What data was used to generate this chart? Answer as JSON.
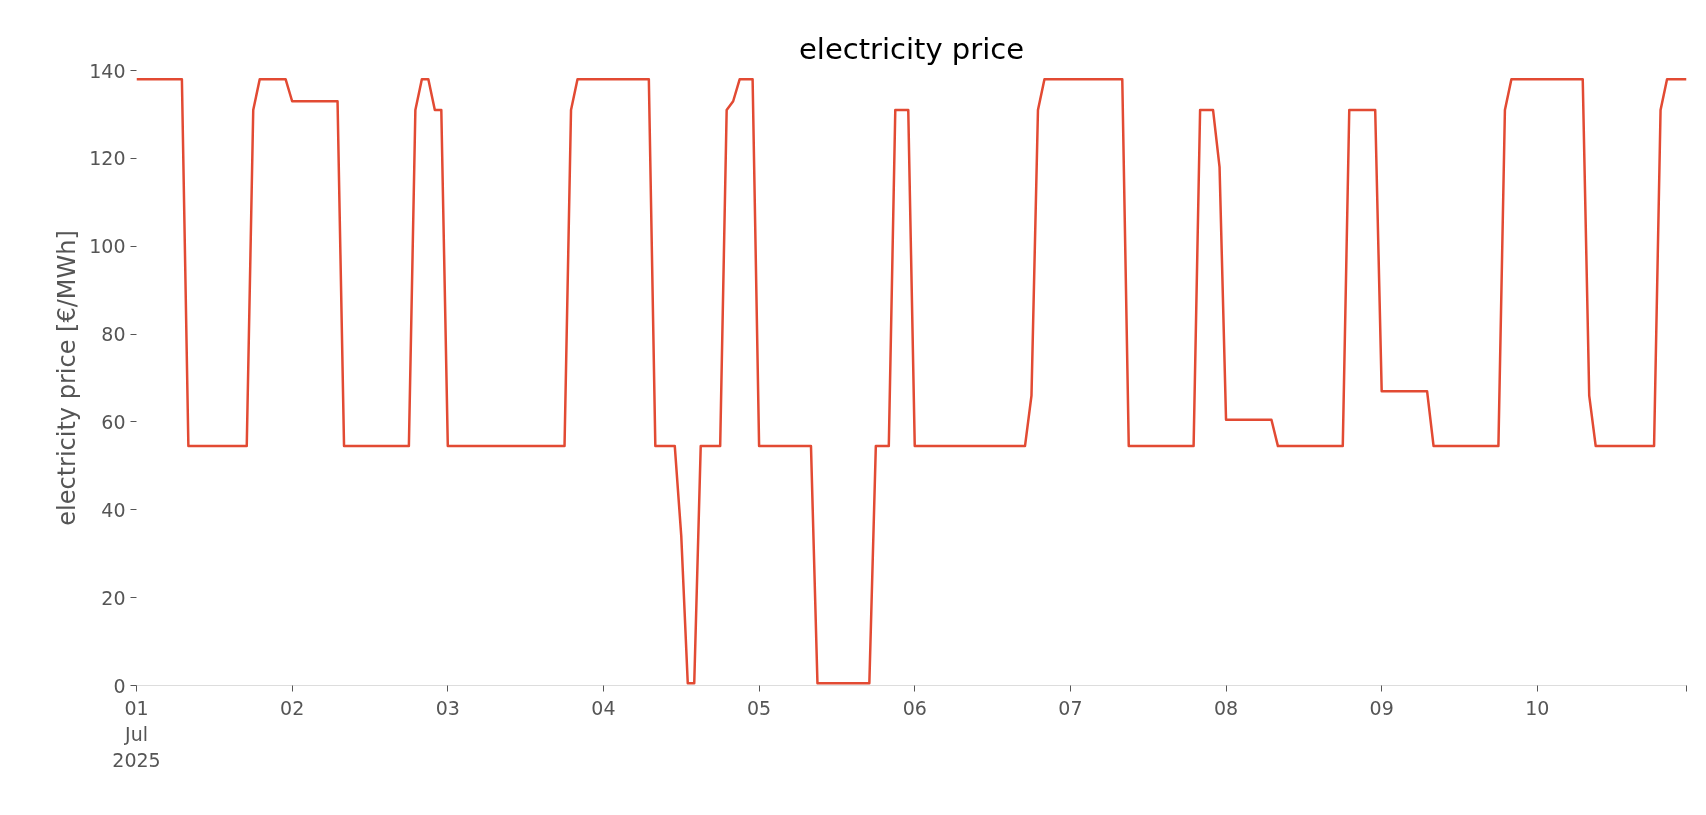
{
  "chart_data": {
    "type": "line",
    "title": "electricity price",
    "ylabel": "electricity price [€/MWh]",
    "x": [
      "2025-07-01T00:00",
      "2025-07-01T07:00",
      "2025-07-01T08:00",
      "2025-07-01T17:00",
      "2025-07-01T18:00",
      "2025-07-01T19:00",
      "2025-07-01T23:00",
      "2025-07-02T00:00",
      "2025-07-02T07:00",
      "2025-07-02T08:00",
      "2025-07-02T18:00",
      "2025-07-02T19:00",
      "2025-07-02T20:00",
      "2025-07-02T21:00",
      "2025-07-02T22:00",
      "2025-07-02T23:00",
      "2025-07-03T00:00",
      "2025-07-03T18:00",
      "2025-07-03T19:00",
      "2025-07-03T20:00",
      "2025-07-04T07:00",
      "2025-07-04T08:00",
      "2025-07-04T11:00",
      "2025-07-04T12:00",
      "2025-07-04T13:00",
      "2025-07-04T14:00",
      "2025-07-04T15:00",
      "2025-07-04T18:00",
      "2025-07-04T19:00",
      "2025-07-04T20:00",
      "2025-07-04T21:00",
      "2025-07-04T23:00",
      "2025-07-05T00:00",
      "2025-07-05T08:00",
      "2025-07-05T09:00",
      "2025-07-05T17:00",
      "2025-07-05T18:00",
      "2025-07-05T20:00",
      "2025-07-05T21:00",
      "2025-07-05T23:00",
      "2025-07-06T00:00",
      "2025-07-06T17:00",
      "2025-07-06T18:00",
      "2025-07-06T19:00",
      "2025-07-06T20:00",
      "2025-07-07T08:00",
      "2025-07-07T09:00",
      "2025-07-07T19:00",
      "2025-07-07T20:00",
      "2025-07-07T22:00",
      "2025-07-07T23:00",
      "2025-07-08T00:00",
      "2025-07-08T07:00",
      "2025-07-08T08:00",
      "2025-07-08T18:00",
      "2025-07-08T19:00",
      "2025-07-08T23:00",
      "2025-07-09T00:00",
      "2025-07-09T07:00",
      "2025-07-09T08:00",
      "2025-07-09T18:00",
      "2025-07-09T19:00",
      "2025-07-09T20:00",
      "2025-07-10T07:00",
      "2025-07-10T08:00",
      "2025-07-10T09:00",
      "2025-07-10T18:00",
      "2025-07-10T19:00",
      "2025-07-10T20:00",
      "2025-07-10T23:00"
    ],
    "series": [
      {
        "color": "#e24a33",
        "values": [
          138,
          138,
          54.5,
          54.5,
          131,
          138,
          138,
          133,
          133,
          54.5,
          54.5,
          131,
          138,
          138,
          131,
          131,
          54.5,
          54.5,
          131,
          138,
          138,
          54.5,
          54.5,
          34,
          0.5,
          0.5,
          54.5,
          54.5,
          131,
          133,
          138,
          138,
          54.5,
          54.5,
          0.5,
          0.5,
          54.5,
          54.5,
          131,
          131,
          54.5,
          54.5,
          66,
          131,
          138,
          138,
          54.5,
          54.5,
          131,
          131,
          118,
          60.5,
          60.5,
          54.5,
          54.5,
          131,
          131,
          67,
          67,
          54.5,
          54.5,
          131,
          138,
          138,
          66,
          54.5,
          54.5,
          131,
          138,
          138
        ]
      }
    ],
    "xlim": [
      "2025-07-01T00:00",
      "2025-07-10T23:00"
    ],
    "xticks": [
      {
        "value": "2025-07-01",
        "label": "01\nJul\n2025"
      },
      {
        "value": "2025-07-02",
        "label": "02"
      },
      {
        "value": "2025-07-03",
        "label": "03"
      },
      {
        "value": "2025-07-04",
        "label": "04"
      },
      {
        "value": "2025-07-05",
        "label": "05"
      },
      {
        "value": "2025-07-06",
        "label": "06"
      },
      {
        "value": "2025-07-07",
        "label": "07"
      },
      {
        "value": "2025-07-08",
        "label": "08"
      },
      {
        "value": "2025-07-09",
        "label": "09"
      },
      {
        "value": "2025-07-10",
        "label": "10"
      },
      {
        "value": "2025-07-10T23:00",
        "label": null
      }
    ],
    "ylim": [
      0,
      140
    ],
    "yticks": [
      0,
      20,
      40,
      60,
      80,
      100,
      120,
      140
    ],
    "grid": false,
    "line_style": "solid",
    "marker": "none"
  }
}
